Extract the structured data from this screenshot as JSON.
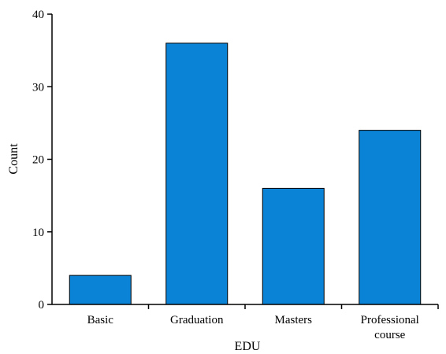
{
  "chart_data": {
    "type": "bar",
    "categories": [
      [
        "Basic"
      ],
      [
        "Graduation"
      ],
      [
        "Masters"
      ],
      [
        "Professional",
        "course"
      ]
    ],
    "values": [
      4,
      36,
      16,
      24
    ],
    "xlabel": "EDU",
    "ylabel": "Count",
    "ylim": [
      0,
      40
    ],
    "yticks": [
      "0",
      "10",
      "20",
      "30",
      "40"
    ],
    "bar_color": "#0a82d6",
    "bar_edge_color": "#000000",
    "grid": false,
    "legend": false
  }
}
